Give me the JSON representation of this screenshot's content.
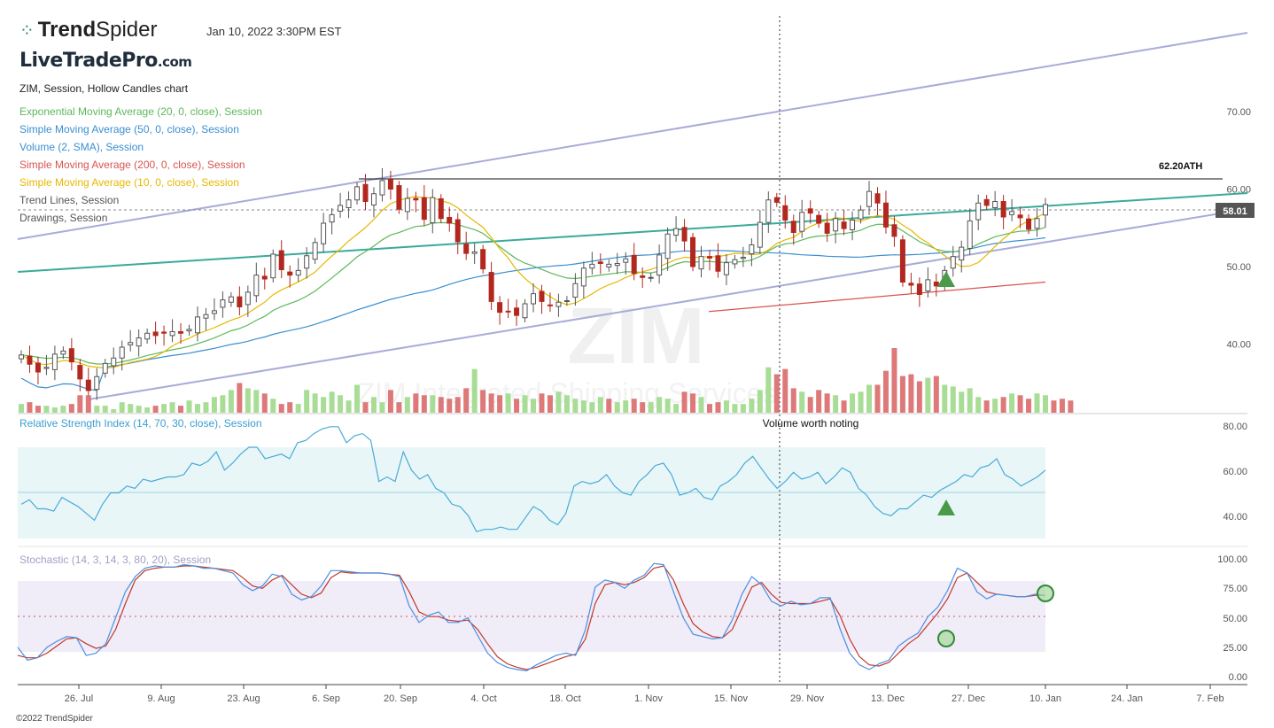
{
  "header": {
    "brand_bold": "Trend",
    "brand_light": "Spider",
    "timestamp": "Jan 10, 2022 3:30PM EST",
    "watermark_site": "LiveTradePro",
    "watermark_domain": ".com"
  },
  "legend": {
    "chart_title": "ZIM, Session, Hollow Candles chart",
    "items": [
      {
        "text": "Exponential Moving Average (20, 0, close), Session",
        "color": "#5cb85c"
      },
      {
        "text": "Simple Moving Average (50, 0, close), Session",
        "color": "#3a8fd0"
      },
      {
        "text": "Volume (2, SMA), Session",
        "color": "#3a8fd0"
      },
      {
        "text": "Simple Moving Average (200, 0, close), Session",
        "color": "#d9534f"
      },
      {
        "text": "Simple Moving Average (10, 0, close), Session",
        "color": "#e6b800"
      },
      {
        "text": "Trend Lines, Session",
        "color": "#555555"
      },
      {
        "text": "Drawings, Session",
        "color": "#555555"
      }
    ]
  },
  "annotations": {
    "ath_label": "62.20ATH",
    "last_price": "58.01",
    "volume_note": "Volume worth noting",
    "symbol_watermark": "ZIM",
    "company_watermark": "ZIM Integrated Shipping Services"
  },
  "panels": {
    "rsi_title": "Relative Strength Index (14, 70, 30, close), Session",
    "stoch_title": "Stochastic (14, 3, 14, 3, 80, 20), Session"
  },
  "footer": "©2022 TrendSpider",
  "chart_data": [
    {
      "type": "candlestick",
      "title": "ZIM, Session, Hollow Candles chart",
      "y_ticks": [
        "40.00",
        "50.00",
        "60.00",
        "70.00"
      ],
      "ylim": [
        33.5,
        75.5
      ],
      "x_ticks": [
        "26. Jul",
        "9. Aug",
        "23. Aug",
        "6. Sep",
        "20. Sep",
        "4. Oct",
        "18. Oct",
        "1. Nov",
        "15. Nov",
        "29. Nov",
        "13. Dec",
        "27. Dec",
        "10. Jan",
        "24. Jan",
        "7. Feb"
      ],
      "ath": 62.2,
      "last_close": 58.01,
      "close": [
        38.6,
        37.4,
        36.4,
        37.0,
        38.7,
        39.1,
        37.7,
        35.5,
        34.0,
        35.8,
        37.5,
        38.2,
        39.6,
        40.2,
        40.8,
        41.4,
        41.1,
        41.4,
        41.6,
        41.4,
        41.9,
        43.5,
        43.8,
        44.3,
        45.7,
        46.1,
        44.8,
        46.7,
        48.9,
        48.4,
        51.6,
        49.6,
        48.9,
        49.5,
        51.4,
        53.1,
        55.6,
        56.7,
        57.9,
        58.6,
        60.3,
        58.4,
        59.4,
        61.1,
        60.0,
        57.4,
        58.8,
        58.6,
        56.1,
        58.9,
        56.2,
        55.6,
        53.2,
        51.7,
        51.9,
        49.7,
        45.5,
        44.1,
        44.2,
        43.7,
        45.2,
        46.5,
        45.5,
        45.0,
        45.4,
        45.6,
        47.8,
        49.8,
        50.3,
        50.4,
        50.3,
        50.4,
        51.0,
        49.1,
        48.6,
        48.6,
        51.5,
        54.2,
        54.9,
        53.3,
        50.0,
        51.3,
        51.1,
        49.4,
        50.5,
        50.9,
        51.2,
        52.8,
        55.7,
        58.6,
        58.3,
        56.0,
        54.4,
        57.0,
        56.9,
        55.6,
        54.3,
        56.2,
        54.9,
        56.0,
        57.3,
        59.7,
        58.2,
        55.1,
        53.9,
        48.0,
        47.6,
        46.4,
        48.3,
        47.5,
        49.5,
        51.3,
        52.5,
        55.9,
        58.2,
        57.9,
        58.4,
        56.4,
        57.1,
        56.3,
        54.8,
        56.2,
        58.01
      ],
      "sma200": [
        [
          800,
          44.2
        ],
        [
          1180,
          48.0
        ]
      ]
    },
    {
      "type": "bar",
      "title": "Volume (2, SMA), Session",
      "values": [
        5,
        6,
        4,
        4,
        3,
        4,
        5,
        10,
        10,
        4,
        4,
        2,
        6,
        5,
        4,
        3,
        4,
        5,
        6,
        4,
        7,
        5,
        6,
        9,
        10,
        13,
        17,
        14,
        13,
        11,
        8,
        5,
        6,
        5,
        13,
        11,
        9,
        12,
        10,
        7,
        16,
        6,
        9,
        6,
        13,
        6,
        9,
        11,
        10,
        10,
        9,
        8,
        9,
        14,
        25,
        13,
        11,
        10,
        11,
        8,
        10,
        8,
        11,
        10,
        12,
        10,
        8,
        7,
        6,
        9,
        8,
        6,
        7,
        8,
        6,
        6,
        9,
        8,
        5,
        12,
        11,
        9,
        5,
        6,
        7,
        5,
        5,
        8,
        13,
        26,
        22,
        25,
        14,
        12,
        9,
        13,
        11,
        10,
        7,
        11,
        12,
        16,
        16,
        24,
        37,
        21,
        22,
        18,
        20,
        21,
        16,
        15,
        12,
        14,
        9,
        7,
        8,
        9,
        11,
        10,
        8,
        11,
        10,
        7,
        8,
        7
      ],
      "volume_note": "Volume worth noting"
    },
    {
      "type": "line",
      "title": "Relative Strength Index (14, 70, 30, close), Session",
      "y_ticks": [
        "40.00",
        "60.00",
        "80.00"
      ],
      "ylim": [
        30,
        80
      ],
      "bands": [
        30,
        70
      ],
      "values": [
        45,
        47,
        43,
        43,
        42,
        48,
        46,
        44,
        41,
        38,
        45,
        50,
        50,
        53,
        52,
        56,
        55,
        56,
        57,
        57,
        58,
        63,
        62,
        64,
        68,
        60,
        63,
        67,
        70,
        70,
        65,
        66,
        67,
        65,
        72,
        73,
        76,
        78,
        79,
        79,
        72,
        75,
        76,
        73,
        55,
        57,
        55,
        68,
        60,
        56,
        58,
        52,
        50,
        45,
        44,
        40,
        33,
        34,
        34,
        35,
        34,
        34,
        39,
        44,
        42,
        38,
        36,
        41,
        53,
        55,
        54,
        55,
        58,
        53,
        50,
        49,
        55,
        58,
        62,
        63,
        58,
        49,
        50,
        52,
        48,
        47,
        53,
        55,
        58,
        63,
        66,
        61,
        56,
        52,
        55,
        59,
        56,
        57,
        59,
        54,
        57,
        61,
        59,
        52,
        49,
        44,
        41,
        40,
        43,
        43,
        46,
        49,
        48,
        51,
        53,
        55,
        58,
        57,
        61,
        62,
        65,
        58,
        56,
        53,
        55,
        57,
        60
      ]
    },
    {
      "type": "line",
      "title": "Stochastic (14, 3, 14, 3, 80, 20), Session",
      "y_ticks": [
        "0.00",
        "25.00",
        "50.00",
        "75.00",
        "100.00"
      ],
      "ylim": [
        -5,
        105
      ],
      "bands": [
        20,
        80
      ],
      "series": [
        {
          "name": "%K",
          "values": [
            25,
            14,
            16,
            25,
            30,
            34,
            33,
            18,
            20,
            28,
            50,
            72,
            85,
            92,
            94,
            93,
            93,
            95,
            94,
            92,
            92,
            90,
            88,
            78,
            73,
            77,
            87,
            85,
            70,
            65,
            68,
            77,
            90,
            90,
            89,
            88,
            88,
            88,
            87,
            85,
            60,
            46,
            52,
            55,
            46,
            46,
            50,
            35,
            20,
            12,
            8,
            6,
            5,
            10,
            14,
            18,
            20,
            18,
            40,
            76,
            82,
            80,
            75,
            82,
            86,
            96,
            95,
            72,
            50,
            36,
            34,
            32,
            33,
            48,
            70,
            85,
            78,
            64,
            60,
            64,
            61,
            62,
            67,
            67,
            41,
            20,
            10,
            6,
            11,
            14,
            26,
            32,
            37,
            51,
            59,
            73,
            92,
            88,
            72,
            66,
            70,
            69,
            68,
            68,
            70,
            69
          ]
        },
        {
          "name": "%D",
          "values": [
            18,
            16,
            16,
            20,
            26,
            32,
            33,
            28,
            24,
            26,
            40,
            62,
            82,
            90,
            92,
            93,
            93,
            94,
            94,
            93,
            92,
            91,
            90,
            84,
            77,
            75,
            82,
            86,
            78,
            70,
            67,
            71,
            84,
            89,
            88,
            88,
            88,
            88,
            87,
            86,
            72,
            55,
            51,
            51,
            48,
            47,
            48,
            40,
            28,
            17,
            11,
            8,
            6,
            8,
            11,
            14,
            17,
            19,
            32,
            62,
            78,
            80,
            78,
            80,
            84,
            92,
            94,
            82,
            62,
            45,
            38,
            34,
            33,
            40,
            58,
            76,
            80,
            70,
            63,
            62,
            62,
            62,
            64,
            66,
            52,
            32,
            17,
            10,
            9,
            12,
            20,
            28,
            34,
            44,
            54,
            66,
            84,
            88,
            80,
            72,
            70,
            69,
            68,
            68,
            69,
            69
          ]
        }
      ]
    }
  ]
}
